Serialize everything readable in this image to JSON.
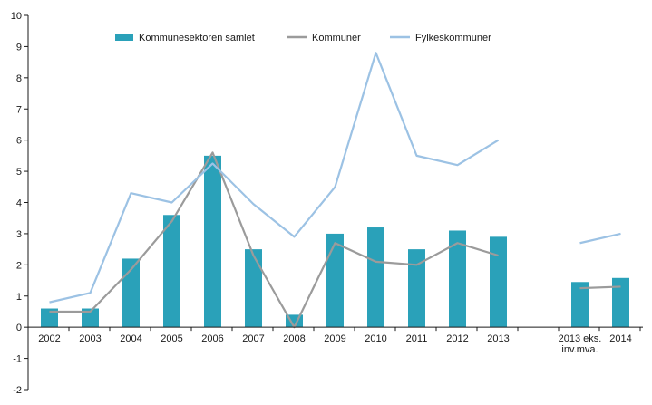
{
  "chart_data": {
    "type": "bar",
    "categories": [
      "2002",
      "2003",
      "2004",
      "2005",
      "2006",
      "2007",
      "2008",
      "2009",
      "2010",
      "2011",
      "2012",
      "2013",
      "",
      "2013 eks. inv.mva.",
      "2014"
    ],
    "category_lines": [
      [
        "2002"
      ],
      [
        "2003"
      ],
      [
        "2004"
      ],
      [
        "2005"
      ],
      [
        "2006"
      ],
      [
        "2007"
      ],
      [
        "2008"
      ],
      [
        "2009"
      ],
      [
        "2010"
      ],
      [
        "2011"
      ],
      [
        "2012"
      ],
      [
        "2013"
      ],
      [
        ""
      ],
      [
        "2013 eks.",
        "inv.mva."
      ],
      [
        "2014"
      ]
    ],
    "ylim": [
      -2,
      10
    ],
    "yticks": [
      -2,
      -1,
      0,
      1,
      2,
      3,
      4,
      5,
      6,
      7,
      8,
      9,
      10
    ],
    "series": [
      {
        "name": "Kommunesektoren samlet",
        "kind": "bar",
        "color": "#2aa1b9",
        "values": [
          0.6,
          0.6,
          2.2,
          3.6,
          5.5,
          2.5,
          0.4,
          3.0,
          3.2,
          2.5,
          3.1,
          2.9,
          null,
          1.45,
          1.58
        ]
      },
      {
        "name": "Kommuner",
        "kind": "line",
        "color": "#9b9b9b",
        "values": [
          0.5,
          0.5,
          1.85,
          3.4,
          5.6,
          2.3,
          0.0,
          2.7,
          2.1,
          2.0,
          2.7,
          2.3,
          null,
          1.25,
          1.3
        ]
      },
      {
        "name": "Fylkeskommuner",
        "kind": "line",
        "color": "#9cc2e4",
        "values": [
          0.8,
          1.1,
          4.3,
          4.0,
          5.25,
          3.95,
          2.9,
          4.5,
          8.8,
          5.5,
          5.2,
          6.0,
          null,
          2.7,
          3.0
        ]
      }
    ],
    "legend_position": "top",
    "grid": false
  }
}
